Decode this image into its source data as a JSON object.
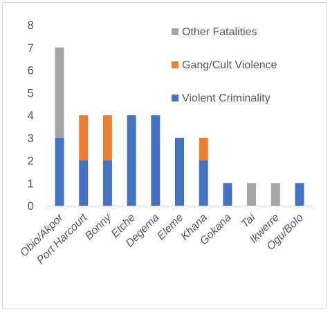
{
  "chart_data": {
    "type": "bar",
    "stacked": true,
    "title": "",
    "xlabel": "",
    "ylabel": "",
    "ylim": [
      0,
      8
    ],
    "yticks": [
      0,
      1,
      2,
      3,
      4,
      5,
      6,
      7,
      8
    ],
    "grid": false,
    "legend_position": "top-right",
    "categories": [
      "Obio/Akpor",
      "Port Harcourt",
      "Bonny",
      "Etche",
      "Degema",
      "Eleme",
      "Khana",
      "Gokana",
      "Tai",
      "Ikwerre",
      "Ogu/Bolo"
    ],
    "series": [
      {
        "name": "Violent Criminality",
        "color": "#4472c4",
        "values": [
          3,
          2,
          2,
          4,
          4,
          3,
          2,
          1,
          0,
          0,
          1
        ]
      },
      {
        "name": "Gang/Cult Violence",
        "color": "#ed7d31",
        "values": [
          0,
          2,
          2,
          0,
          0,
          0,
          1,
          0,
          0,
          0,
          0
        ]
      },
      {
        "name": "Other Fatalities",
        "color": "#a5a5a5",
        "values": [
          4,
          0,
          0,
          0,
          0,
          0,
          0,
          0,
          1,
          1,
          0
        ]
      }
    ],
    "legend_order": [
      "Other Fatalities",
      "Gang/Cult Violence",
      "Violent Criminality"
    ]
  }
}
